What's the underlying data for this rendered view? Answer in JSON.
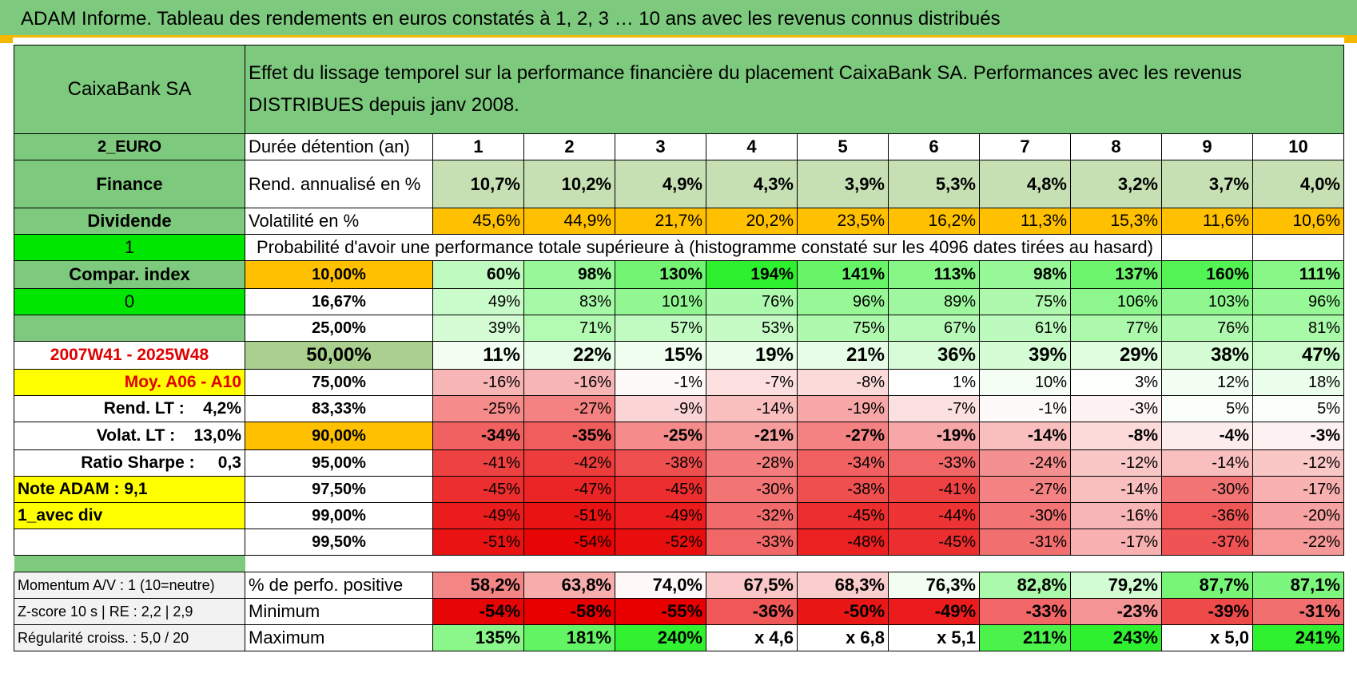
{
  "title": "ADAM Informe. Tableau des rendements en euros constatés à 1, 2, 3 … 10 ans avec les revenus connus distribués",
  "header": {
    "name": "CaixaBank SA",
    "description": "Effet du lissage temporel sur la performance financière du placement CaixaBank SA. Performances avec les revenus DISTRIBUES depuis janv 2008."
  },
  "left": {
    "currency": "2_EURO",
    "sector": "Finance",
    "type": "Dividende",
    "flag1": "1",
    "compar": "Compar. index",
    "flag2": "0",
    "period": "2007W41 - 2025W48",
    "moy": "Moy. A06 - A10",
    "rend_lt": "Rend. LT :    4,2%",
    "volat_lt": "Volat. LT :    13,0%",
    "sharpe": "Ratio Sharpe :     0,3",
    "note": "Note ADAM : 9,1",
    "avec_div": "1_avec div",
    "momentum": "Momentum A/V : 1 (10=neutre)",
    "zscore": "Z-score 10 s | RE : 2,2 | 2,9",
    "regularite": "Régularité croiss. : 5,0 / 20"
  },
  "row_labels": {
    "duree": "Durée détention (an)",
    "rend": "Rend. annualisé en %",
    "vol": "Volatilité en %",
    "proba": "Probabilité d'avoir une performance totale supérieure à (histogramme constaté sur les 4096 dates tirées au hasard)",
    "positive": "% de perfo. positive",
    "minimum": "Minimum",
    "maximum": "Maximum"
  },
  "years": [
    "1",
    "2",
    "3",
    "4",
    "5",
    "6",
    "7",
    "8",
    "9",
    "10"
  ],
  "rend": [
    "10,7%",
    "10,2%",
    "4,9%",
    "4,3%",
    "3,9%",
    "5,3%",
    "4,8%",
    "3,2%",
    "3,7%",
    "4,0%"
  ],
  "vol": [
    "45,6%",
    "44,9%",
    "21,7%",
    "20,2%",
    "23,5%",
    "16,2%",
    "11,3%",
    "15,3%",
    "11,6%",
    "10,6%"
  ],
  "quantiles": [
    {
      "q": "10,00%",
      "v": [
        "60%",
        "98%",
        "130%",
        "194%",
        "141%",
        "113%",
        "98%",
        "137%",
        "160%",
        "111%"
      ]
    },
    {
      "q": "16,67%",
      "v": [
        "49%",
        "83%",
        "101%",
        "76%",
        "96%",
        "89%",
        "75%",
        "106%",
        "103%",
        "96%"
      ]
    },
    {
      "q": "25,00%",
      "v": [
        "39%",
        "71%",
        "57%",
        "53%",
        "75%",
        "67%",
        "61%",
        "77%",
        "76%",
        "81%"
      ]
    },
    {
      "q": "50,00%",
      "v": [
        "11%",
        "22%",
        "15%",
        "19%",
        "21%",
        "36%",
        "39%",
        "29%",
        "38%",
        "47%"
      ]
    },
    {
      "q": "75,00%",
      "v": [
        "-16%",
        "-16%",
        "-1%",
        "-7%",
        "-8%",
        "1%",
        "10%",
        "3%",
        "12%",
        "18%"
      ]
    },
    {
      "q": "83,33%",
      "v": [
        "-25%",
        "-27%",
        "-9%",
        "-14%",
        "-19%",
        "-7%",
        "-1%",
        "-3%",
        "5%",
        "5%"
      ]
    },
    {
      "q": "90,00%",
      "v": [
        "-34%",
        "-35%",
        "-25%",
        "-21%",
        "-27%",
        "-19%",
        "-14%",
        "-8%",
        "-4%",
        "-3%"
      ]
    },
    {
      "q": "95,00%",
      "v": [
        "-41%",
        "-42%",
        "-38%",
        "-28%",
        "-34%",
        "-33%",
        "-24%",
        "-12%",
        "-14%",
        "-12%"
      ]
    },
    {
      "q": "97,50%",
      "v": [
        "-45%",
        "-47%",
        "-45%",
        "-30%",
        "-38%",
        "-41%",
        "-27%",
        "-14%",
        "-30%",
        "-17%"
      ]
    },
    {
      "q": "99,00%",
      "v": [
        "-49%",
        "-51%",
        "-49%",
        "-32%",
        "-45%",
        "-44%",
        "-30%",
        "-16%",
        "-36%",
        "-20%"
      ]
    },
    {
      "q": "99,50%",
      "v": [
        "-51%",
        "-54%",
        "-52%",
        "-33%",
        "-48%",
        "-45%",
        "-31%",
        "-17%",
        "-37%",
        "-22%"
      ]
    }
  ],
  "positive": [
    "58,2%",
    "63,8%",
    "74,0%",
    "67,5%",
    "68,3%",
    "76,3%",
    "82,8%",
    "79,2%",
    "87,7%",
    "87,1%"
  ],
  "minimum": [
    "-54%",
    "-58%",
    "-55%",
    "-36%",
    "-50%",
    "-49%",
    "-33%",
    "-23%",
    "-39%",
    "-31%"
  ],
  "maximum": [
    "135%",
    "181%",
    "240%",
    "x 4,6",
    "x 6,8",
    "x 5,1",
    "211%",
    "243%",
    "x 5,0",
    "241%"
  ],
  "colors": {
    "header_green": "#7dc97d",
    "orange": "#ffc000",
    "yellow": "#ffff00",
    "bright_green": "#00e600",
    "red_text": "#e00000"
  }
}
